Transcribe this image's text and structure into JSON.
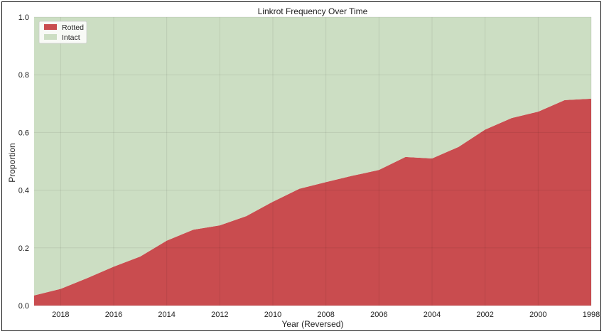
{
  "chart_data": {
    "type": "area",
    "title": "Linkrot Frequency Over Time",
    "xlabel": "Year (Reversed)",
    "ylabel": "Proportion",
    "x": [
      2019,
      2018,
      2017,
      2016,
      2015,
      2014,
      2013,
      2012,
      2011,
      2010,
      2009,
      2008,
      2007,
      2006,
      2005,
      2004,
      2003,
      2002,
      2001,
      2000,
      1999,
      1998
    ],
    "x_reversed": true,
    "xlim": [
      2019,
      1998
    ],
    "ylim": [
      0,
      1
    ],
    "xticks": [
      "2018",
      "2016",
      "2014",
      "2012",
      "2010",
      "2008",
      "2006",
      "2004",
      "2002",
      "2000",
      "1998"
    ],
    "yticks": [
      "0.0",
      "0.2",
      "0.4",
      "0.6",
      "0.8",
      "1.0"
    ],
    "stacked": true,
    "series": [
      {
        "name": "Rotted",
        "color": "#c94c4f",
        "values": [
          0.035,
          0.058,
          0.095,
          0.135,
          0.17,
          0.225,
          0.263,
          0.278,
          0.31,
          0.36,
          0.405,
          0.428,
          0.45,
          0.47,
          0.515,
          0.51,
          0.55,
          0.61,
          0.65,
          0.672,
          0.712,
          0.717
        ]
      },
      {
        "name": "Intact",
        "color": "#ccdec3",
        "values": [
          0.965,
          0.942,
          0.905,
          0.865,
          0.83,
          0.775,
          0.737,
          0.722,
          0.69,
          0.64,
          0.595,
          0.572,
          0.55,
          0.53,
          0.485,
          0.49,
          0.45,
          0.39,
          0.35,
          0.328,
          0.288,
          0.283
        ]
      }
    ],
    "grid": true,
    "legend_position": "top-left"
  }
}
